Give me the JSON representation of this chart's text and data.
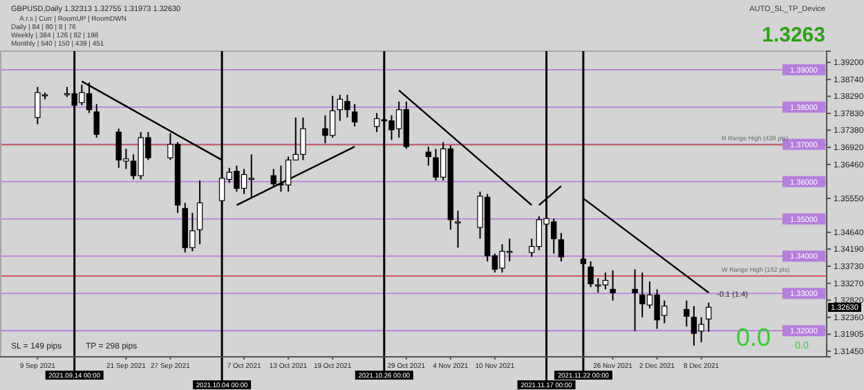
{
  "chart_data": {
    "type": "candlestick",
    "title": "GBPUSD,Daily 1.32313 1.32755 1.31973 1.32630",
    "x": [
      "2021-09-09",
      "2021-09-10",
      "2021-09-13",
      "2021-09-14",
      "2021-09-15",
      "2021-09-16",
      "2021-09-17",
      "2021-09-20",
      "2021-09-21",
      "2021-09-22",
      "2021-09-23",
      "2021-09-24",
      "2021-09-27",
      "2021-09-28",
      "2021-09-29",
      "2021-09-30",
      "2021-10-01",
      "2021-10-04",
      "2021-10-05",
      "2021-10-06",
      "2021-10-07",
      "2021-10-08",
      "2021-10-11",
      "2021-10-12",
      "2021-10-13",
      "2021-10-14",
      "2021-10-15",
      "2021-10-18",
      "2021-10-19",
      "2021-10-20",
      "2021-10-21",
      "2021-10-22",
      "2021-10-25",
      "2021-10-26",
      "2021-10-27",
      "2021-10-28",
      "2021-10-29",
      "2021-11-01",
      "2021-11-02",
      "2021-11-03",
      "2021-11-04",
      "2021-11-05",
      "2021-11-08",
      "2021-11-09",
      "2021-11-10",
      "2021-11-11",
      "2021-11-12",
      "2021-11-15",
      "2021-11-16",
      "2021-11-17",
      "2021-11-18",
      "2021-11-19",
      "2021-11-22",
      "2021-11-23",
      "2021-11-24",
      "2021-11-25",
      "2021-11-26",
      "2021-11-29",
      "2021-11-30",
      "2021-12-01",
      "2021-12-02",
      "2021-12-03",
      "2021-12-06",
      "2021-12-07",
      "2021-12-08",
      "2021-12-09"
    ],
    "xlim": [
      "2021-09-04",
      "2021-12-25"
    ],
    "xticks": [
      {
        "value": "2021-09-09",
        "label": "9 Sep 2021"
      },
      {
        "value": "2021-09-21",
        "label": "21 Sep 2021"
      },
      {
        "value": "2021-09-27",
        "label": "27 Sep 2021"
      },
      {
        "value": "2021-10-07",
        "label": "7 Oct 2021"
      },
      {
        "value": "2021-10-13",
        "label": "13 Oct 2021"
      },
      {
        "value": "2021-10-19",
        "label": "19 Oct 2021"
      },
      {
        "value": "2021-10-29",
        "label": "29 Oct 2021"
      },
      {
        "value": "2021-11-04",
        "label": "4 Nov 2021"
      },
      {
        "value": "2021-11-10",
        "label": "10 Nov 2021"
      },
      {
        "value": "2021-11-26",
        "label": "26 Nov 2021"
      },
      {
        "value": "2021-12-02",
        "label": "2 Dec 2021"
      },
      {
        "value": "2021-12-08",
        "label": "8 Dec 2021"
      }
    ],
    "ohlc": [
      [
        1.3772,
        1.3854,
        1.3754,
        1.3839
      ],
      [
        1.3833,
        1.3839,
        1.3821,
        1.3833
      ],
      [
        1.3836,
        1.3854,
        1.3827,
        1.3836
      ],
      [
        1.3836,
        1.3839,
        1.3793,
        1.3805
      ],
      [
        1.3812,
        1.386,
        1.3805,
        1.3839
      ],
      [
        1.3836,
        1.3866,
        1.3784,
        1.3793
      ],
      [
        1.3787,
        1.3808,
        1.3718,
        1.3727
      ],
      [
        1.3733,
        1.3742,
        1.3637,
        1.3658
      ],
      [
        1.3655,
        1.3688,
        1.3634,
        1.3661
      ],
      [
        1.3655,
        1.3673,
        1.3606,
        1.3616
      ],
      [
        1.3616,
        1.3733,
        1.3606,
        1.3718
      ],
      [
        1.3718,
        1.3733,
        1.3658,
        1.3664
      ],
      [
        1.3664,
        1.373,
        1.3658,
        1.37
      ],
      [
        1.37,
        1.3706,
        1.3516,
        1.3537
      ],
      [
        1.3528,
        1.3543,
        1.341,
        1.3423
      ],
      [
        1.3423,
        1.3516,
        1.3413,
        1.3468
      ],
      [
        1.3471,
        1.3603,
        1.3432,
        1.3543
      ],
      [
        1.3549,
        1.364,
        1.3522,
        1.3609
      ],
      [
        1.3606,
        1.3637,
        1.3597,
        1.3625
      ],
      [
        1.3628,
        1.3643,
        1.3573,
        1.3582
      ],
      [
        1.3582,
        1.3634,
        1.3567,
        1.3619
      ],
      [
        1.3606,
        1.3673,
        1.3558,
        1.3609
      ],
      [
        1.3616,
        1.3634,
        1.3588,
        1.3594
      ],
      [
        1.3594,
        1.3643,
        1.3573,
        1.3591
      ],
      [
        1.3591,
        1.3667,
        1.3573,
        1.3658
      ],
      [
        1.3658,
        1.3772,
        1.3658,
        1.3673
      ],
      [
        1.3673,
        1.3772,
        1.3658,
        1.3742
      ],
      [
        1.3742,
        1.3778,
        1.3703,
        1.3724
      ],
      [
        1.3724,
        1.383,
        1.3718,
        1.379
      ],
      [
        1.3793,
        1.3833,
        1.3763,
        1.3821
      ],
      [
        1.3815,
        1.3833,
        1.3772,
        1.3793
      ],
      [
        1.3787,
        1.3808,
        1.3748,
        1.376
      ],
      [
        1.3748,
        1.3784,
        1.3733,
        1.3769
      ],
      [
        1.3766,
        1.3784,
        1.3748,
        1.3763
      ],
      [
        1.3763,
        1.3778,
        1.3712,
        1.3739
      ],
      [
        1.3742,
        1.3815,
        1.3718,
        1.3793
      ],
      [
        1.3793,
        1.3815,
        1.3688,
        1.3694
      ],
      [
        1.3679,
        1.3694,
        1.3643,
        1.3667
      ],
      [
        1.3664,
        1.3688,
        1.3603,
        1.3612
      ],
      [
        1.3612,
        1.3706,
        1.3603,
        1.3688
      ],
      [
        1.3688,
        1.3697,
        1.3471,
        1.3498
      ],
      [
        1.3492,
        1.3522,
        1.3423,
        1.3492
      ],
      [
        1.3477,
        1.3573,
        1.3447,
        1.3561
      ],
      [
        1.3558,
        1.3567,
        1.3386,
        1.3401
      ],
      [
        1.3401,
        1.3407,
        1.3356,
        1.3365
      ],
      [
        1.3368,
        1.3432,
        1.3356,
        1.3413
      ],
      [
        1.3413,
        1.3447,
        1.3386,
        1.3413
      ],
      [
        1.341,
        1.3447,
        1.3398,
        1.3426
      ],
      [
        1.3426,
        1.3507,
        1.3416,
        1.3498
      ],
      [
        1.3486,
        1.3522,
        1.3462,
        1.3501
      ],
      [
        1.3492,
        1.3501,
        1.3407,
        1.3447
      ],
      [
        1.3444,
        1.3462,
        1.3386,
        1.3398
      ],
      [
        1.3392,
        1.3401,
        1.3371,
        1.338
      ],
      [
        1.3371,
        1.3386,
        1.3317,
        1.3326
      ],
      [
        1.3323,
        1.3341,
        1.3302,
        1.3323
      ],
      [
        1.3323,
        1.3356,
        1.3311,
        1.3335
      ],
      [
        1.3311,
        1.3362,
        1.3281,
        1.3302
      ],
      [
        1.3311,
        1.3365,
        1.3199,
        1.3302
      ],
      [
        1.3296,
        1.3356,
        1.3236,
        1.3272
      ],
      [
        1.3269,
        1.3332,
        1.326,
        1.3296
      ],
      [
        1.3296,
        1.3311,
        1.3205,
        1.3229
      ],
      [
        1.3241,
        1.3281,
        1.322,
        1.3266
      ],
      [
        1.3257,
        1.3281,
        1.3211,
        1.3239
      ],
      [
        1.3236,
        1.3266,
        1.316,
        1.3193
      ],
      [
        1.3199,
        1.3236,
        1.3169,
        1.3217
      ],
      [
        1.32313,
        1.32755,
        1.31973,
        1.3263
      ]
    ],
    "series": [
      {
        "type": "line",
        "color": "#000000",
        "values": [
          null,
          null,
          null,
          null,
          1.3869,
          null,
          null,
          null,
          null,
          null,
          null,
          null,
          null,
          null,
          null,
          null,
          null,
          1.3658,
          null,
          null,
          null,
          null,
          null,
          null,
          null,
          null,
          null,
          null,
          null,
          null,
          null,
          null,
          null,
          null,
          null,
          null,
          null,
          null,
          null,
          null,
          null,
          null,
          null,
          null,
          null,
          null,
          null,
          null,
          null,
          null,
          null,
          null,
          null,
          null,
          null,
          null,
          null,
          null,
          null,
          null,
          null,
          null,
          null,
          null,
          null,
          null
        ]
      },
      {
        "type": "line",
        "color": "#000000",
        "values": [
          null,
          null,
          null,
          null,
          null,
          null,
          null,
          null,
          null,
          null,
          null,
          null,
          null,
          null,
          null,
          null,
          null,
          null,
          null,
          1.3537,
          null,
          null,
          null,
          null,
          null,
          null,
          null,
          null,
          null,
          null,
          null,
          1.3694,
          null,
          null,
          null,
          null,
          null,
          null,
          null,
          null,
          null,
          null,
          null,
          null,
          null,
          null,
          null,
          null,
          null,
          null,
          null,
          null,
          null,
          null,
          null,
          null,
          null,
          null,
          null,
          null,
          null,
          null,
          null,
          null,
          null,
          null
        ]
      },
      {
        "type": "line",
        "color": "#000000",
        "values": [
          null,
          null,
          null,
          null,
          null,
          null,
          null,
          null,
          null,
          null,
          null,
          null,
          null,
          null,
          null,
          null,
          null,
          null,
          null,
          null,
          null,
          null,
          null,
          null,
          null,
          null,
          null,
          null,
          null,
          null,
          null,
          null,
          null,
          null,
          null,
          1.3845,
          null,
          null,
          null,
          null,
          null,
          null,
          null,
          null,
          null,
          null,
          null,
          1.3537,
          null,
          null,
          null,
          null,
          null,
          null,
          null,
          null,
          null,
          null,
          null,
          null,
          null,
          null,
          null,
          null,
          null,
          null
        ]
      },
      {
        "type": "line",
        "color": "#000000",
        "values": [
          null,
          null,
          null,
          null,
          null,
          null,
          null,
          null,
          null,
          null,
          null,
          null,
          null,
          null,
          null,
          null,
          null,
          null,
          null,
          null,
          null,
          null,
          null,
          null,
          null,
          null,
          null,
          null,
          null,
          null,
          null,
          null,
          null,
          null,
          null,
          null,
          null,
          null,
          null,
          null,
          null,
          null,
          null,
          null,
          null,
          null,
          null,
          null,
          1.3537,
          null,
          null,
          1.3588,
          null,
          null,
          null,
          null,
          null,
          null,
          null,
          null,
          null,
          null,
          null,
          null,
          null,
          null
        ]
      },
      {
        "type": "line",
        "color": "#000000",
        "values": [
          null,
          null,
          null,
          null,
          null,
          null,
          null,
          null,
          null,
          null,
          null,
          null,
          null,
          null,
          null,
          null,
          null,
          null,
          null,
          null,
          null,
          null,
          null,
          null,
          null,
          null,
          null,
          null,
          null,
          null,
          null,
          null,
          null,
          null,
          null,
          null,
          null,
          null,
          null,
          null,
          null,
          null,
          null,
          null,
          null,
          null,
          null,
          null,
          null,
          null,
          null,
          null,
          1.3555,
          null,
          null,
          null,
          null,
          null,
          null,
          null,
          null,
          null,
          null,
          null,
          null,
          1.3302
        ]
      }
    ],
    "ylim": [
      1.313,
      1.395
    ],
    "yticks": [
      {
        "value": 1.392,
        "label": "1.39200"
      },
      {
        "value": 1.3874,
        "label": "1.38740"
      },
      {
        "value": 1.3829,
        "label": "1.38290"
      },
      {
        "value": 1.3783,
        "label": "1.37830"
      },
      {
        "value": 1.3738,
        "label": "1.37380"
      },
      {
        "value": 1.3692,
        "label": "1.36920"
      },
      {
        "value": 1.3646,
        "label": "1.36460"
      },
      {
        "value": 1.3555,
        "label": "1.35550"
      },
      {
        "value": 1.3464,
        "label": "1.34640"
      },
      {
        "value": 1.3419,
        "label": "1.34190"
      },
      {
        "value": 1.3373,
        "label": "1.33730"
      },
      {
        "value": 1.3327,
        "label": "1.33270"
      },
      {
        "value": 1.3282,
        "label": "1.32820"
      },
      {
        "value": 1.3236,
        "label": "1.32360"
      },
      {
        "value": 1.31905,
        "label": "1.31905"
      },
      {
        "value": 1.3145,
        "label": "1.31450"
      }
    ],
    "ref_lines": [
      {
        "axis": "y",
        "value": 1.39,
        "label": "1.39000",
        "color": "#b57edc"
      },
      {
        "axis": "y",
        "value": 1.38,
        "label": "1.38000",
        "color": "#b57edc"
      },
      {
        "axis": "y",
        "value": 1.37,
        "label": "1.37000",
        "color": "#b57edc"
      },
      {
        "axis": "y",
        "value": 1.36,
        "label": "1.36000",
        "color": "#b57edc"
      },
      {
        "axis": "y",
        "value": 1.35,
        "label": "1.35000",
        "color": "#b57edc"
      },
      {
        "axis": "y",
        "value": 1.34,
        "label": "1.34000",
        "color": "#b57edc"
      },
      {
        "axis": "y",
        "value": 1.33,
        "label": "1.33000",
        "color": "#b57edc"
      },
      {
        "axis": "y",
        "value": 1.32,
        "label": "1.32000",
        "color": "#b57edc"
      },
      {
        "axis": "y",
        "value": 1.3699,
        "label": "R Range High (438 pts)",
        "color": "#c05a5a"
      },
      {
        "axis": "y",
        "value": 1.3347,
        "label": "W Range High (182 pts)",
        "color": "#d04848"
      },
      {
        "axis": "x",
        "value": "2021-09-14",
        "label": "2021.09.14 00:00",
        "color": "#000000"
      },
      {
        "axis": "x",
        "value": "2021-10-04",
        "label": "2021.10.04 00:00",
        "color": "#000000"
      },
      {
        "axis": "x",
        "value": "2021-10-26",
        "label": "2021.10.26 00:00",
        "color": "#000000"
      },
      {
        "axis": "x",
        "value": "2021-11-17",
        "label": "2021.11.17 00:00",
        "color": "#000000"
      },
      {
        "axis": "x",
        "value": "2021-11-22",
        "label": "2021.11.22 00:00",
        "color": "#000000"
      }
    ],
    "annotations": [
      "A.r.s | Curr | RoomUP | RoomDWN",
      "Daily | 84 | 80 | 8 | 76",
      "Weekly | 384 | 126 | 82 | 198",
      "Monthly | 540 | 150 | 439 | 451",
      "AUTO_SL_TP_Device",
      "1.3263",
      "0.0",
      "0.0",
      "SL = 149 pips",
      "TP = 298 pips",
      {
        "text": "-0.1 (1.4)",
        "y": 1.3299
      },
      "1.32630"
    ]
  }
}
